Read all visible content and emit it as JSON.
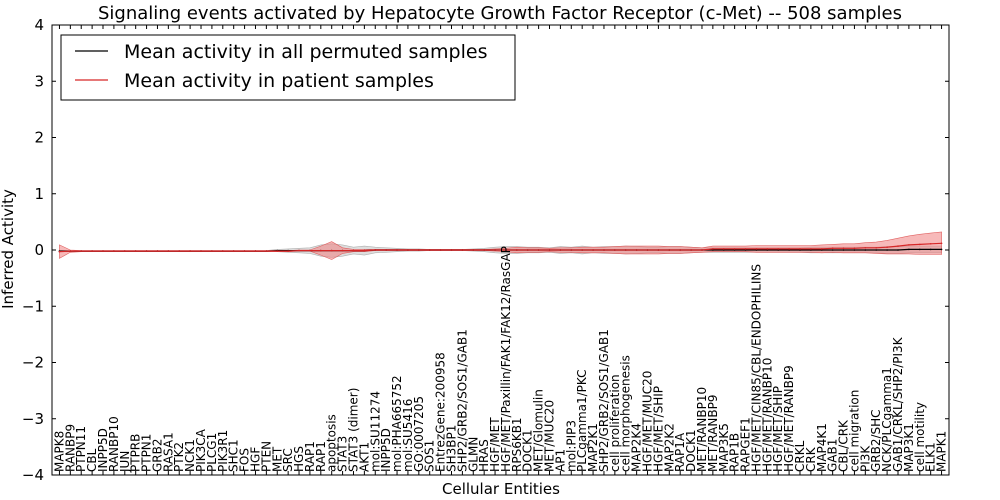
{
  "chart_data": {
    "type": "line",
    "title": "Signaling events activated by Hepatocyte Growth Factor Receptor (c-Met) -- 508 samples",
    "xlabel": "Cellular Entities",
    "ylabel": "Inferred Activity",
    "ylim": [
      -4,
      4
    ],
    "yticks": [
      -4,
      -3,
      -2,
      -1,
      0,
      1,
      2,
      3,
      4
    ],
    "ytick_labels": [
      "−4",
      "−3",
      "−2",
      "−1",
      "0",
      "1",
      "2",
      "3",
      "4"
    ],
    "legend_position": "top-left",
    "categories": [
      "MAPK8",
      "RANBP9",
      "PTPN11",
      "CBL",
      "INPP5D",
      "RANBP10",
      "JUN",
      "PTPRB",
      "PTPN1",
      "GRB2",
      "RASA1",
      "PTK2",
      "NCK1",
      "PIK3CA",
      "PLCG1",
      "PIK3R1",
      "SHC1",
      "FOS",
      "HGF",
      "PTEN",
      "MET",
      "SRC",
      "HGS",
      "RAP1",
      "RAP1",
      "apoptosis",
      "STAT3",
      "STAT3 (dimer)",
      "AKT1",
      "mol:SU11274",
      "INPP5D",
      "mol:PHA665752",
      "mol:SU5416",
      "GO:0007205",
      "SOS1",
      "EntrezGene:200958",
      "SH3BP1",
      "SHP2/GRB2/SOS1/GAB1",
      "GLMN",
      "HRAS",
      "HGF/MET",
      "HGF/MET/Paxillin/FAK1/FAK12/RasGAP",
      "RPS6KB1",
      "DOCK1",
      "MET/Glomulin",
      "MET/MUC20",
      "AP1",
      "mol:PIP3",
      "PLCgamma1/PKC",
      "MAP2K1",
      "SHP2/GRB2/SOS1/GAB1",
      "cell proliferation",
      "cell morphogenesis",
      "MAP2K4",
      "HGF/MET/MUC20",
      "HGF/MET/SHIP",
      "MAP2K2",
      "RAP1A",
      "DOCK1",
      "MET/RANBP10",
      "MET/RANBP9",
      "MAP3K5",
      "RAP1B",
      "RAPGEF1",
      "HGF/MET/CIN85/CBL/ENDOPHILINS",
      "HGF/MET/RANBP10",
      "HGF/MET/SHIP",
      "HGF/MET/RANBP9",
      "CRKL",
      "CRK",
      "MAP4K1",
      "GAB1",
      "CBL/CRK",
      "cell migration",
      "PI3K",
      "GRB2/SHC",
      "NCK/PLCgamma1",
      "GAB1/CRKL/SHP2/PI3K",
      "MAP3K1",
      "cell motility",
      "ELK1",
      "MAPK1"
    ],
    "series": [
      {
        "name": "Mean activity in all permuted samples",
        "color": "#000000",
        "values": [
          -0.02,
          -0.02,
          -0.02,
          -0.02,
          -0.02,
          -0.02,
          -0.02,
          -0.02,
          -0.02,
          -0.02,
          -0.02,
          -0.02,
          -0.02,
          -0.02,
          -0.02,
          -0.02,
          -0.02,
          -0.02,
          -0.02,
          -0.02,
          -0.01,
          -0.01,
          -0.01,
          -0.01,
          -0.01,
          -0.01,
          -0.01,
          -0.01,
          -0.01,
          0.0,
          0.0,
          0.0,
          0.0,
          0.0,
          0.0,
          0.0,
          0.0,
          0.0,
          0.0,
          0.0,
          0.0,
          0.0,
          0.0,
          0.0,
          0.0,
          0.0,
          0.0,
          0.0,
          0.0,
          0.0,
          0.0,
          0.0,
          0.0,
          0.0,
          0.0,
          0.0,
          0.0,
          0.0,
          0.0,
          0.0,
          0.0,
          0.0,
          0.0,
          0.0,
          0.0,
          0.0,
          0.0,
          0.0,
          0.0,
          0.0,
          0.0,
          0.0,
          0.0,
          0.0,
          0.0,
          0.0,
          0.0,
          0.0,
          0.01,
          0.01,
          0.01,
          0.01
        ],
        "spread": [
          0.01,
          0.01,
          0.01,
          0.01,
          0.01,
          0.01,
          0.01,
          0.01,
          0.01,
          0.01,
          0.01,
          0.01,
          0.01,
          0.01,
          0.01,
          0.01,
          0.01,
          0.01,
          0.01,
          0.01,
          0.02,
          0.03,
          0.04,
          0.05,
          0.1,
          0.12,
          0.1,
          0.06,
          0.08,
          0.05,
          0.04,
          0.03,
          0.02,
          0.02,
          0.01,
          0.01,
          0.01,
          0.01,
          0.02,
          0.03,
          0.05,
          0.06,
          0.06,
          0.05,
          0.05,
          0.04,
          0.06,
          0.05,
          0.07,
          0.05,
          0.06,
          0.06,
          0.07,
          0.06,
          0.05,
          0.05,
          0.06,
          0.06,
          0.05,
          0.04,
          0.04,
          0.04,
          0.04,
          0.04,
          0.04,
          0.04,
          0.04,
          0.04,
          0.04,
          0.05,
          0.05,
          0.05,
          0.05,
          0.05,
          0.05,
          0.05,
          0.06,
          0.06,
          0.06,
          0.06,
          0.06,
          0.06
        ]
      },
      {
        "name": "Mean activity in patient samples",
        "color": "#d62728",
        "band_color": "#f08080",
        "values": [
          -0.03,
          -0.02,
          -0.02,
          -0.02,
          -0.02,
          -0.02,
          -0.02,
          -0.02,
          -0.02,
          -0.02,
          -0.02,
          -0.02,
          -0.02,
          -0.02,
          -0.02,
          -0.02,
          -0.02,
          -0.02,
          -0.02,
          -0.02,
          -0.02,
          -0.02,
          -0.01,
          -0.01,
          -0.01,
          -0.01,
          -0.01,
          -0.01,
          -0.01,
          0.0,
          0.0,
          0.0,
          0.0,
          0.0,
          0.0,
          0.0,
          0.0,
          0.0,
          0.0,
          0.0,
          0.0,
          0.0,
          0.0,
          0.0,
          0.0,
          0.0,
          0.0,
          0.0,
          0.0,
          0.0,
          0.0,
          0.0,
          0.0,
          0.0,
          0.0,
          0.0,
          0.0,
          0.0,
          0.0,
          0.0,
          0.02,
          0.02,
          0.02,
          0.02,
          0.02,
          0.02,
          0.02,
          0.02,
          0.02,
          0.02,
          0.02,
          0.03,
          0.03,
          0.03,
          0.04,
          0.04,
          0.05,
          0.07,
          0.09,
          0.1,
          0.11,
          0.12
        ],
        "spread": [
          0.12,
          0.02,
          0.01,
          0.01,
          0.01,
          0.01,
          0.01,
          0.01,
          0.01,
          0.01,
          0.01,
          0.01,
          0.01,
          0.01,
          0.01,
          0.01,
          0.01,
          0.01,
          0.01,
          0.01,
          0.01,
          0.01,
          0.01,
          0.01,
          0.08,
          0.16,
          0.05,
          0.02,
          0.02,
          0.01,
          0.01,
          0.01,
          0.01,
          0.01,
          0.01,
          0.01,
          0.01,
          0.01,
          0.01,
          0.01,
          0.02,
          0.03,
          0.05,
          0.04,
          0.04,
          0.03,
          0.04,
          0.04,
          0.05,
          0.05,
          0.05,
          0.06,
          0.07,
          0.07,
          0.07,
          0.07,
          0.06,
          0.06,
          0.05,
          0.04,
          0.05,
          0.05,
          0.05,
          0.05,
          0.06,
          0.06,
          0.06,
          0.06,
          0.06,
          0.06,
          0.07,
          0.07,
          0.08,
          0.08,
          0.09,
          0.1,
          0.12,
          0.14,
          0.16,
          0.18,
          0.19,
          0.2
        ]
      }
    ]
  }
}
